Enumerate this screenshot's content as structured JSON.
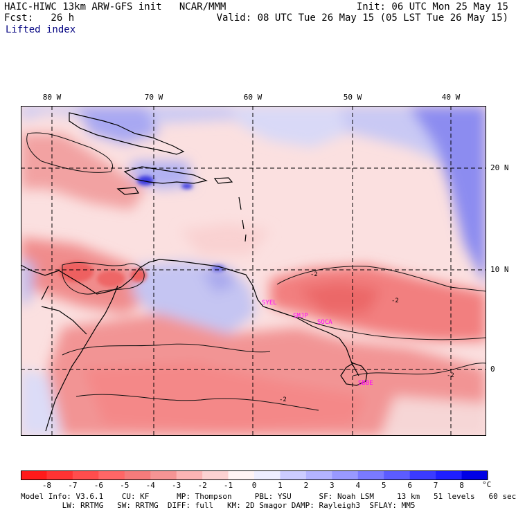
{
  "header": {
    "title": "HAIC-HIWC 13km ARW-GFS init   NCAR/MMM",
    "init": "Init: 06 UTC Mon 25 May 15",
    "fcst": "Fcst:   26 h",
    "valid": "Valid: 08 UTC Tue 26 May 15 (05 LST Tue 26 May 15)",
    "field": "Lifted index"
  },
  "map": {
    "lon_labels": [
      "80 W",
      "70 W",
      "60 W",
      "50 W",
      "40 W"
    ],
    "lat_labels": [
      "20 N",
      "10 N",
      "0"
    ],
    "stations": [
      "SYEL",
      "SMJP",
      "SOCA",
      "SBBE"
    ],
    "contour_labels": [
      "-2",
      "-2",
      "-2",
      "-2"
    ]
  },
  "colorbar": {
    "labels": [
      "-8",
      "-7",
      "-6",
      "-5",
      "-4",
      "-3",
      "-2",
      "-1",
      "0",
      "1",
      "2",
      "3",
      "4",
      "5",
      "6",
      "7",
      "8"
    ],
    "unit": "°C",
    "colors": [
      "#ff1a1a",
      "#ff3333",
      "#ff4d4d",
      "#ff6666",
      "#f57b7b",
      "#f59494",
      "#fbb4b4",
      "#fcd2d2",
      "#fff4f4",
      "#eeeeff",
      "#ccccff",
      "#b3b3ff",
      "#9999ff",
      "#7a7aff",
      "#5c5cff",
      "#3b3bff",
      "#1f1fff",
      "#0000e6"
    ]
  },
  "footer": {
    "line1": "Model Info: V3.6.1    CU: KF      MP: Thompson     PBL: YSU      SF: Noah LSM     13 km   51 levels   60 sec",
    "line2": "         LW: RRTMG   SW: RRTMG  DIFF: full   KM: 2D Smagor DAMP: Rayleigh3  SFLAY: MM5"
  }
}
